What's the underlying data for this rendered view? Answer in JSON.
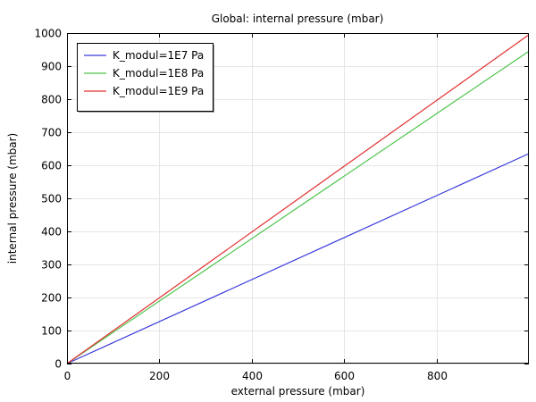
{
  "chart_data": {
    "type": "line",
    "title": "Global: internal pressure (mbar)",
    "xlabel": "external pressure (mbar)",
    "ylabel": "internal pressure (mbar)",
    "xlim": [
      0,
      1000
    ],
    "ylim": [
      0,
      1000
    ],
    "xticks": [
      0,
      200,
      400,
      600,
      800
    ],
    "yticks": [
      0,
      100,
      200,
      300,
      400,
      500,
      600,
      700,
      800,
      900,
      1000
    ],
    "grid": true,
    "legend_position": "top-left",
    "series": [
      {
        "name": "K_modul=1E7 Pa",
        "color": "#3b3bdc",
        "x": [
          0,
          1000
        ],
        "y": [
          0,
          635
        ]
      },
      {
        "name": "K_modul=1E8 Pa",
        "color": "#4cc44c",
        "x": [
          0,
          1000
        ],
        "y": [
          0,
          945
        ]
      },
      {
        "name": "K_modul=1E9 Pa",
        "color": "#e33131",
        "x": [
          0,
          1000
        ],
        "y": [
          0,
          995
        ]
      }
    ]
  }
}
